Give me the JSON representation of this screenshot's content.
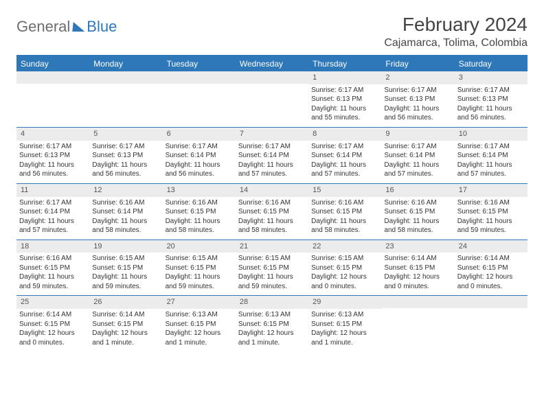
{
  "brand": {
    "word1": "General",
    "word2": "Blue"
  },
  "header": {
    "month": "February 2024",
    "location": "Cajamarca, Tolima, Colombia"
  },
  "dayNames": [
    "Sunday",
    "Monday",
    "Tuesday",
    "Wednesday",
    "Thursday",
    "Friday",
    "Saturday"
  ],
  "colors": {
    "accent": "#2e77b8",
    "headerText": "#ffffff",
    "dayNumBg": "#ececec",
    "bodyText": "#333333"
  },
  "weeks": [
    [
      {
        "blank": true
      },
      {
        "blank": true
      },
      {
        "blank": true
      },
      {
        "blank": true
      },
      {
        "num": "1",
        "sunrise": "Sunrise: 6:17 AM",
        "sunset": "Sunset: 6:13 PM",
        "daylight": "Daylight: 11 hours and 55 minutes."
      },
      {
        "num": "2",
        "sunrise": "Sunrise: 6:17 AM",
        "sunset": "Sunset: 6:13 PM",
        "daylight": "Daylight: 11 hours and 56 minutes."
      },
      {
        "num": "3",
        "sunrise": "Sunrise: 6:17 AM",
        "sunset": "Sunset: 6:13 PM",
        "daylight": "Daylight: 11 hours and 56 minutes."
      }
    ],
    [
      {
        "num": "4",
        "sunrise": "Sunrise: 6:17 AM",
        "sunset": "Sunset: 6:13 PM",
        "daylight": "Daylight: 11 hours and 56 minutes."
      },
      {
        "num": "5",
        "sunrise": "Sunrise: 6:17 AM",
        "sunset": "Sunset: 6:13 PM",
        "daylight": "Daylight: 11 hours and 56 minutes."
      },
      {
        "num": "6",
        "sunrise": "Sunrise: 6:17 AM",
        "sunset": "Sunset: 6:14 PM",
        "daylight": "Daylight: 11 hours and 56 minutes."
      },
      {
        "num": "7",
        "sunrise": "Sunrise: 6:17 AM",
        "sunset": "Sunset: 6:14 PM",
        "daylight": "Daylight: 11 hours and 57 minutes."
      },
      {
        "num": "8",
        "sunrise": "Sunrise: 6:17 AM",
        "sunset": "Sunset: 6:14 PM",
        "daylight": "Daylight: 11 hours and 57 minutes."
      },
      {
        "num": "9",
        "sunrise": "Sunrise: 6:17 AM",
        "sunset": "Sunset: 6:14 PM",
        "daylight": "Daylight: 11 hours and 57 minutes."
      },
      {
        "num": "10",
        "sunrise": "Sunrise: 6:17 AM",
        "sunset": "Sunset: 6:14 PM",
        "daylight": "Daylight: 11 hours and 57 minutes."
      }
    ],
    [
      {
        "num": "11",
        "sunrise": "Sunrise: 6:17 AM",
        "sunset": "Sunset: 6:14 PM",
        "daylight": "Daylight: 11 hours and 57 minutes."
      },
      {
        "num": "12",
        "sunrise": "Sunrise: 6:16 AM",
        "sunset": "Sunset: 6:14 PM",
        "daylight": "Daylight: 11 hours and 58 minutes."
      },
      {
        "num": "13",
        "sunrise": "Sunrise: 6:16 AM",
        "sunset": "Sunset: 6:15 PM",
        "daylight": "Daylight: 11 hours and 58 minutes."
      },
      {
        "num": "14",
        "sunrise": "Sunrise: 6:16 AM",
        "sunset": "Sunset: 6:15 PM",
        "daylight": "Daylight: 11 hours and 58 minutes."
      },
      {
        "num": "15",
        "sunrise": "Sunrise: 6:16 AM",
        "sunset": "Sunset: 6:15 PM",
        "daylight": "Daylight: 11 hours and 58 minutes."
      },
      {
        "num": "16",
        "sunrise": "Sunrise: 6:16 AM",
        "sunset": "Sunset: 6:15 PM",
        "daylight": "Daylight: 11 hours and 58 minutes."
      },
      {
        "num": "17",
        "sunrise": "Sunrise: 6:16 AM",
        "sunset": "Sunset: 6:15 PM",
        "daylight": "Daylight: 11 hours and 59 minutes."
      }
    ],
    [
      {
        "num": "18",
        "sunrise": "Sunrise: 6:16 AM",
        "sunset": "Sunset: 6:15 PM",
        "daylight": "Daylight: 11 hours and 59 minutes."
      },
      {
        "num": "19",
        "sunrise": "Sunrise: 6:15 AM",
        "sunset": "Sunset: 6:15 PM",
        "daylight": "Daylight: 11 hours and 59 minutes."
      },
      {
        "num": "20",
        "sunrise": "Sunrise: 6:15 AM",
        "sunset": "Sunset: 6:15 PM",
        "daylight": "Daylight: 11 hours and 59 minutes."
      },
      {
        "num": "21",
        "sunrise": "Sunrise: 6:15 AM",
        "sunset": "Sunset: 6:15 PM",
        "daylight": "Daylight: 11 hours and 59 minutes."
      },
      {
        "num": "22",
        "sunrise": "Sunrise: 6:15 AM",
        "sunset": "Sunset: 6:15 PM",
        "daylight": "Daylight: 12 hours and 0 minutes."
      },
      {
        "num": "23",
        "sunrise": "Sunrise: 6:14 AM",
        "sunset": "Sunset: 6:15 PM",
        "daylight": "Daylight: 12 hours and 0 minutes."
      },
      {
        "num": "24",
        "sunrise": "Sunrise: 6:14 AM",
        "sunset": "Sunset: 6:15 PM",
        "daylight": "Daylight: 12 hours and 0 minutes."
      }
    ],
    [
      {
        "num": "25",
        "sunrise": "Sunrise: 6:14 AM",
        "sunset": "Sunset: 6:15 PM",
        "daylight": "Daylight: 12 hours and 0 minutes."
      },
      {
        "num": "26",
        "sunrise": "Sunrise: 6:14 AM",
        "sunset": "Sunset: 6:15 PM",
        "daylight": "Daylight: 12 hours and 1 minute."
      },
      {
        "num": "27",
        "sunrise": "Sunrise: 6:13 AM",
        "sunset": "Sunset: 6:15 PM",
        "daylight": "Daylight: 12 hours and 1 minute."
      },
      {
        "num": "28",
        "sunrise": "Sunrise: 6:13 AM",
        "sunset": "Sunset: 6:15 PM",
        "daylight": "Daylight: 12 hours and 1 minute."
      },
      {
        "num": "29",
        "sunrise": "Sunrise: 6:13 AM",
        "sunset": "Sunset: 6:15 PM",
        "daylight": "Daylight: 12 hours and 1 minute."
      },
      {
        "blank": true
      },
      {
        "blank": true
      }
    ]
  ]
}
